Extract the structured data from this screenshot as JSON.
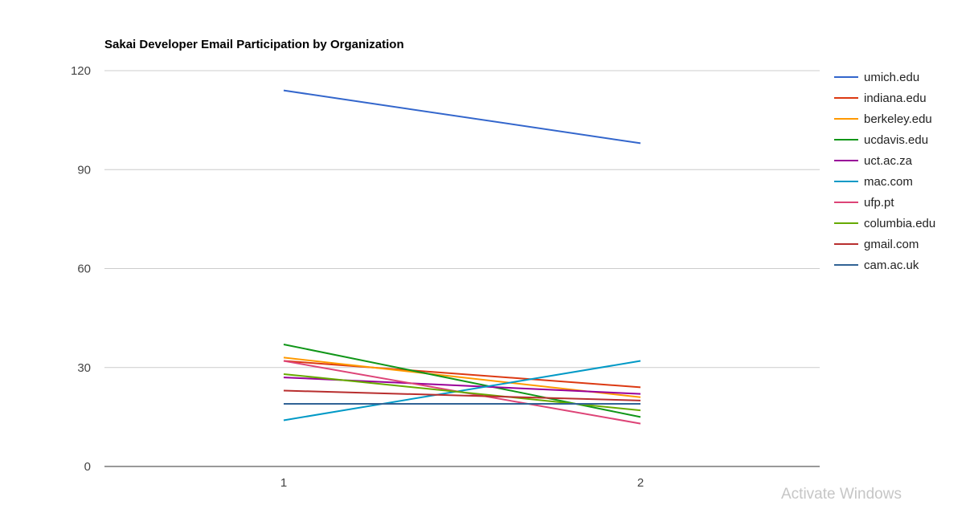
{
  "chart_data": {
    "type": "line",
    "title": "Sakai Developer Email Participation by Organization",
    "xlabel": "",
    "ylabel": "",
    "x": [
      "1",
      "2"
    ],
    "ylim": [
      0,
      120
    ],
    "yticks": [
      0,
      30,
      60,
      90,
      120
    ],
    "grid": true,
    "legend_position": "right",
    "series": [
      {
        "name": "umich.edu",
        "color": "#3366cc",
        "values": [
          114,
          98
        ]
      },
      {
        "name": "indiana.edu",
        "color": "#dc3912",
        "values": [
          32,
          24
        ]
      },
      {
        "name": "berkeley.edu",
        "color": "#ff9900",
        "values": [
          33,
          21
        ]
      },
      {
        "name": "ucdavis.edu",
        "color": "#109618",
        "values": [
          37,
          15
        ]
      },
      {
        "name": "uct.ac.za",
        "color": "#990099",
        "values": [
          27,
          22
        ]
      },
      {
        "name": "mac.com",
        "color": "#0099c6",
        "values": [
          14,
          32
        ]
      },
      {
        "name": "ufp.pt",
        "color": "#dd4477",
        "values": [
          32,
          13
        ]
      },
      {
        "name": "columbia.edu",
        "color": "#66aa00",
        "values": [
          28,
          17
        ]
      },
      {
        "name": "gmail.com",
        "color": "#b82e2e",
        "values": [
          23,
          20
        ]
      },
      {
        "name": "cam.ac.uk",
        "color": "#316395",
        "values": [
          19,
          19
        ]
      }
    ]
  },
  "watermark": "Activate Windows"
}
